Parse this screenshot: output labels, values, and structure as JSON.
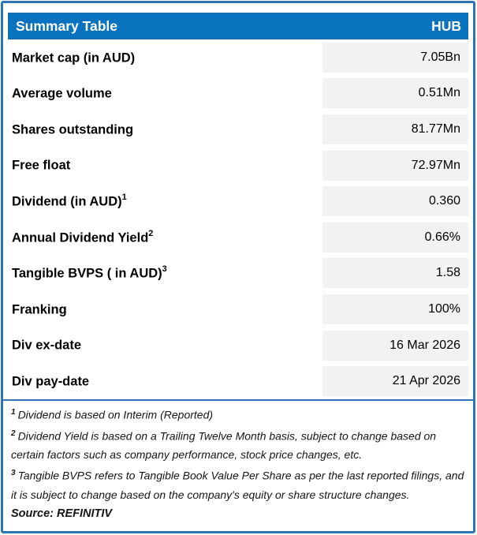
{
  "header": {
    "title": "Summary Table",
    "ticker": "HUB"
  },
  "table": {
    "rows": [
      {
        "label": "Market cap (in AUD)",
        "sup": "",
        "value": "7.05Bn"
      },
      {
        "label": "Average volume",
        "sup": "",
        "value": "0.51Mn"
      },
      {
        "label": "Shares outstanding",
        "sup": "",
        "value": "81.77Mn"
      },
      {
        "label": "Free float",
        "sup": "",
        "value": "72.97Mn"
      },
      {
        "label": "Dividend (in AUD)",
        "sup": "1",
        "value": "0.360"
      },
      {
        "label": "Annual Dividend Yield",
        "sup": "2",
        "value": "0.66%"
      },
      {
        "label": "Tangible BVPS ( in AUD)",
        "sup": "3",
        "value": "1.58"
      },
      {
        "label": "Franking",
        "sup": "",
        "value": "100%"
      },
      {
        "label": "Div ex-date",
        "sup": "",
        "value": "16 Mar 2026"
      },
      {
        "label": "Div pay-date",
        "sup": "",
        "value": "21 Apr 2026"
      }
    ]
  },
  "footnotes": [
    {
      "sup": "1",
      "text": "Dividend is based on Interim (Reported)"
    },
    {
      "sup": "2",
      "text": "Dividend Yield is based on a Trailing Twelve Month basis, subject to change based on certain factors such as company performance, stock price changes, etc."
    },
    {
      "sup": "3",
      "text": "Tangible BVPS refers to Tangible Book Value Per Share as per the last reported filings, and it is subject to change based on the company's equity or share structure changes."
    }
  ],
  "source": "Source: REFINITIV",
  "colors": {
    "header_bg": "#0A73C0",
    "frame_border": "#2E75B6",
    "value_cell_bg": "#F2F2F2",
    "header_text": "#FFFFFF"
  }
}
